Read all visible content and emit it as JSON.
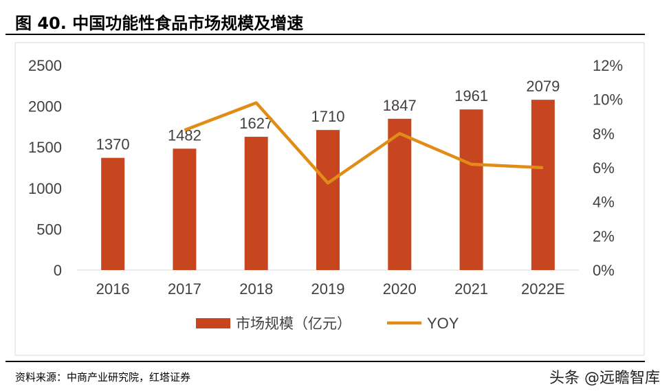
{
  "title": "图 40. 中国功能性食品市场规模及增速",
  "source": "资料来源：中商产业研究院，红塔证券",
  "watermark": "头条 @远瞻智库",
  "chart_data": {
    "type": "bar+line",
    "categories": [
      "2016",
      "2017",
      "2018",
      "2019",
      "2020",
      "2021",
      "2022E"
    ],
    "series": [
      {
        "name": "市场规模（亿元）",
        "type": "bar",
        "axis": "left",
        "color": "#C8461F",
        "values": [
          1370,
          1482,
          1627,
          1710,
          1847,
          1961,
          2079
        ]
      },
      {
        "name": "YOY",
        "type": "line",
        "axis": "right",
        "color": "#E28C18",
        "values": [
          null,
          8.2,
          9.8,
          5.1,
          8.0,
          6.2,
          6.0
        ]
      }
    ],
    "left_axis": {
      "ylim": [
        0,
        2500
      ],
      "ticks": [
        "0",
        "500",
        "1000",
        "1500",
        "2000",
        "2500"
      ]
    },
    "right_axis": {
      "ylim": [
        0,
        12
      ],
      "ticks": [
        "0%",
        "2%",
        "4%",
        "6%",
        "8%",
        "10%",
        "12%"
      ]
    },
    "grid": false,
    "legend": "bottom"
  }
}
